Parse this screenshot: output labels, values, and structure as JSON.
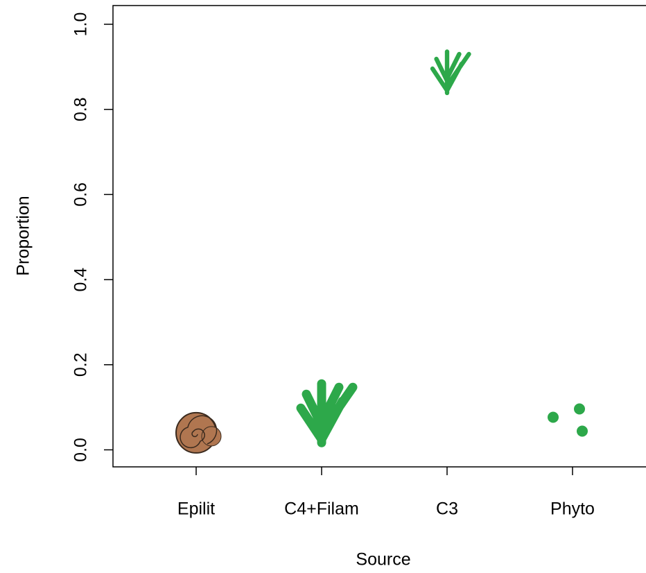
{
  "chart_data": {
    "type": "scatter",
    "x_label": "Source",
    "y_label": "Proportion",
    "categories": [
      "Epilit",
      "C4+Filam",
      "C3",
      "Phyto"
    ],
    "values": [
      0.04,
      0.09,
      0.89,
      0.07
    ],
    "colors": [
      "#b07650",
      "#2da84a",
      "#2da84a",
      "#2da84a"
    ],
    "ylim": [
      -0.04,
      1.044
    ],
    "yticks": [
      {
        "value": 0,
        "label": "0.0"
      },
      0.2,
      0.4,
      0.6,
      0.8,
      {
        "value": 1,
        "label": "1.0"
      }
    ]
  }
}
